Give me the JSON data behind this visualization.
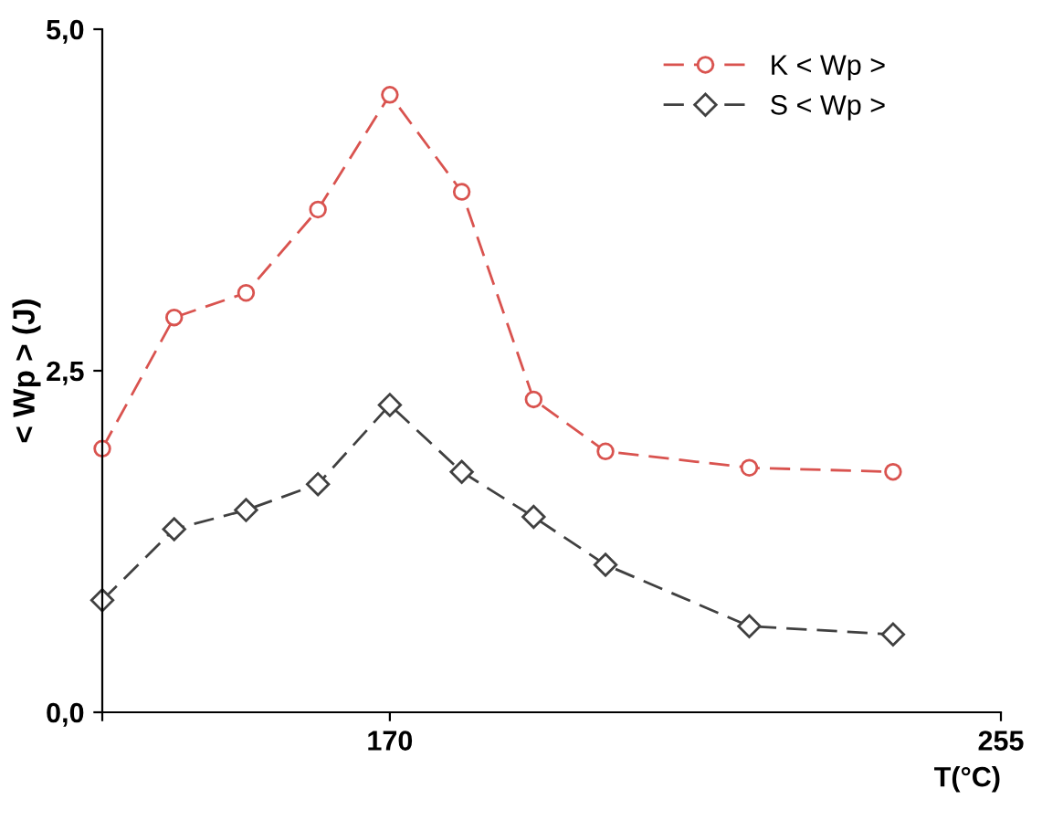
{
  "chart_data": {
    "type": "line",
    "xlabel": "T(°C)",
    "ylabel": "< Wp > (J)",
    "x": [
      130,
      140,
      150,
      160,
      170,
      180,
      190,
      200,
      220,
      240
    ],
    "series": [
      {
        "name": "K < Wp >",
        "color": "#d9534f",
        "marker": "circle",
        "values": [
          1.93,
          2.89,
          3.07,
          3.68,
          4.52,
          3.81,
          2.29,
          1.91,
          1.79,
          1.76
        ]
      },
      {
        "name": "S < Wp >",
        "color": "#404040",
        "marker": "diamond",
        "values": [
          0.82,
          1.34,
          1.48,
          1.67,
          2.25,
          1.76,
          1.43,
          1.08,
          0.63,
          0.57
        ]
      }
    ],
    "xlim": [
      130,
      255
    ],
    "xticks": [
      {
        "value": 130,
        "label": null
      },
      170,
      255
    ],
    "ylim": [
      0,
      5
    ],
    "yticks": [
      {
        "value": 0,
        "label": "0,0"
      },
      {
        "value": 2.5,
        "label": "2,5"
      },
      {
        "value": 5,
        "label": "5,0"
      }
    ],
    "line_style": "dashed",
    "grid": false,
    "legend": "top right"
  }
}
